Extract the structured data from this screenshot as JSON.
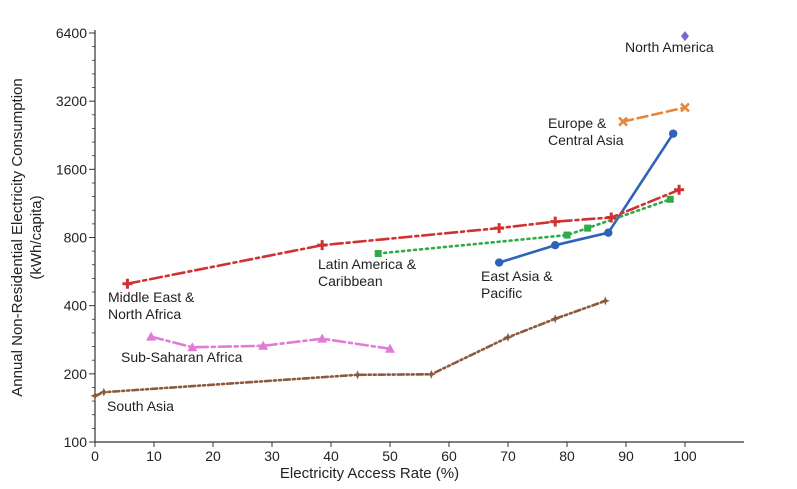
{
  "chart_data": {
    "type": "line",
    "xlabel": "Electricity Access Rate (%)",
    "ylabel": [
      "Annual Non-Residential Electricity Consumption",
      "(kWh/capita)"
    ],
    "xlim": [
      0,
      110
    ],
    "ylim": [
      100,
      6400
    ],
    "yscale": "log2",
    "grid": false,
    "x_ticks": [
      "0",
      "10",
      "20",
      "30",
      "40",
      "50",
      "60",
      "70",
      "80",
      "90",
      "100"
    ],
    "y_ticks": [
      "100",
      "200",
      "400",
      "800",
      "1600",
      "3200",
      "6400"
    ],
    "series": [
      {
        "name": "North America",
        "label_lines": [
          "North America"
        ],
        "color": "#7b68c8",
        "marker": "diamond",
        "dash": "",
        "points": [
          [
            100,
            6200
          ]
        ]
      },
      {
        "name": "Europe & Central Asia",
        "label_lines": [
          "Europe &",
          "Central Asia"
        ],
        "color": "#e8873a",
        "marker": "x",
        "dash": "10,5",
        "points": [
          [
            89.5,
            2600
          ],
          [
            100,
            3000
          ]
        ]
      },
      {
        "name": "East Asia & Pacific",
        "label_lines": [
          "East Asia &",
          "Pacific"
        ],
        "color": "#2d63b8",
        "marker": "circle",
        "dash": "",
        "points": [
          [
            68.5,
            620
          ],
          [
            78,
            740
          ],
          [
            87,
            840
          ],
          [
            98,
            2300
          ]
        ]
      },
      {
        "name": "Latin America & Caribbean",
        "label_lines": [
          "Latin America &",
          "Caribbean"
        ],
        "color": "#2eaa48",
        "marker": "square",
        "dash": "2,4",
        "points": [
          [
            48,
            680
          ],
          [
            80,
            820
          ],
          [
            83.5,
            880
          ],
          [
            97.5,
            1180
          ]
        ]
      },
      {
        "name": "Middle East & North Africa",
        "label_lines": [
          "Middle East &",
          "North Africa"
        ],
        "color": "#d03232",
        "marker": "plus",
        "dash": "12,4,3,4",
        "points": [
          [
            5.5,
            500
          ],
          [
            38.5,
            740
          ],
          [
            68.5,
            880
          ],
          [
            78,
            940
          ],
          [
            87.5,
            980
          ],
          [
            99,
            1300
          ]
        ]
      },
      {
        "name": "Sub-Saharan Africa",
        "label_lines": [
          "Sub-Saharan Africa"
        ],
        "color": "#e27ad8",
        "marker": "triangle",
        "dash": "12,4,3,4",
        "points": [
          [
            9.5,
            292
          ],
          [
            16.5,
            262
          ],
          [
            28.5,
            266
          ],
          [
            38.5,
            286
          ],
          [
            50,
            258
          ]
        ]
      },
      {
        "name": "South Asia",
        "label_lines": [
          "South Asia"
        ],
        "color": "#8c5a3c",
        "marker": "star",
        "dash": "6,3,2,3,2,3",
        "points": [
          [
            0,
            160
          ],
          [
            1.5,
            166
          ],
          [
            44.5,
            198
          ],
          [
            57,
            199
          ],
          [
            70,
            290
          ],
          [
            78,
            350
          ],
          [
            86.5,
            420
          ]
        ]
      }
    ]
  }
}
